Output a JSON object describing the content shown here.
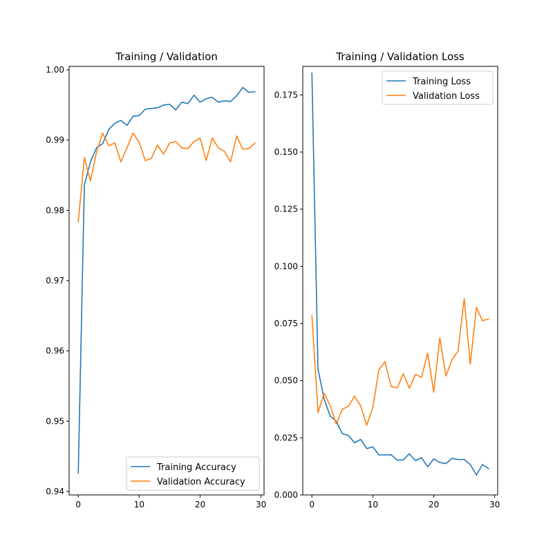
{
  "chart_data": [
    {
      "type": "line",
      "title": "Training / Validation",
      "xlabel": "",
      "ylabel": "",
      "xlim": [
        -1.5,
        30.5
      ],
      "ylim": [
        0.9395,
        1.0005
      ],
      "xticks": [
        0,
        10,
        20,
        30
      ],
      "yticks": [
        0.94,
        0.95,
        0.96,
        0.97,
        0.98,
        0.99,
        1.0
      ],
      "ytick_labels": [
        "0.94",
        "0.95",
        "0.96",
        "0.97",
        "0.98",
        "0.99",
        "1.00"
      ],
      "grid": false,
      "legend_position": "lower-right",
      "x": [
        0,
        1,
        2,
        3,
        4,
        5,
        6,
        7,
        8,
        9,
        10,
        11,
        12,
        13,
        14,
        15,
        16,
        17,
        18,
        19,
        20,
        21,
        22,
        23,
        24,
        25,
        26,
        27,
        28,
        29
      ],
      "series": [
        {
          "name": "Training Accuracy",
          "color": "#1f77b4",
          "values": [
            0.9426,
            0.9836,
            0.9869,
            0.9889,
            0.9895,
            0.9915,
            0.9924,
            0.9928,
            0.9921,
            0.9934,
            0.9935,
            0.9944,
            0.9945,
            0.9946,
            0.995,
            0.9951,
            0.9943,
            0.9954,
            0.9952,
            0.9964,
            0.9954,
            0.9959,
            0.9961,
            0.9954,
            0.9956,
            0.9955,
            0.9963,
            0.9975,
            0.9968,
            0.9969
          ]
        },
        {
          "name": "Validation Accuracy",
          "color": "#ff7f0e",
          "values": [
            0.9784,
            0.9875,
            0.9842,
            0.9883,
            0.991,
            0.9892,
            0.9896,
            0.9869,
            0.9889,
            0.991,
            0.9897,
            0.9871,
            0.9874,
            0.9893,
            0.988,
            0.9896,
            0.9898,
            0.9889,
            0.9888,
            0.9898,
            0.9903,
            0.9871,
            0.9903,
            0.9889,
            0.9884,
            0.9869,
            0.9906,
            0.9887,
            0.9888,
            0.9896
          ]
        }
      ]
    },
    {
      "type": "line",
      "title": "Training / Validation Loss",
      "xlabel": "",
      "ylabel": "",
      "xlim": [
        -1.5,
        30.5
      ],
      "ylim": [
        0.0,
        0.1875
      ],
      "xticks": [
        0,
        10,
        20,
        30
      ],
      "yticks": [
        0.0,
        0.025,
        0.05,
        0.075,
        0.1,
        0.125,
        0.15,
        0.175
      ],
      "ytick_labels": [
        "0.000",
        "0.025",
        "0.050",
        "0.075",
        "0.100",
        "0.125",
        "0.150",
        "0.175"
      ],
      "grid": false,
      "legend_position": "upper-right",
      "x": [
        0,
        1,
        2,
        3,
        4,
        5,
        6,
        7,
        8,
        9,
        10,
        11,
        12,
        13,
        14,
        15,
        16,
        17,
        18,
        19,
        20,
        21,
        22,
        23,
        24,
        25,
        26,
        27,
        28,
        29
      ],
      "series": [
        {
          "name": "Training Loss",
          "color": "#1f77b4",
          "values": [
            0.1845,
            0.055,
            0.042,
            0.0345,
            0.0322,
            0.0268,
            0.026,
            0.0228,
            0.0243,
            0.0203,
            0.021,
            0.0175,
            0.0175,
            0.0176,
            0.0152,
            0.0153,
            0.018,
            0.015,
            0.0163,
            0.0123,
            0.0158,
            0.0142,
            0.0137,
            0.016,
            0.0155,
            0.0155,
            0.0133,
            0.0087,
            0.0133,
            0.0115
          ]
        },
        {
          "name": "Validation Loss",
          "color": "#ff7f0e",
          "values": [
            0.0785,
            0.036,
            0.0445,
            0.039,
            0.031,
            0.0375,
            0.0388,
            0.0432,
            0.039,
            0.0305,
            0.0382,
            0.0548,
            0.0583,
            0.0475,
            0.0468,
            0.053,
            0.0467,
            0.0527,
            0.0515,
            0.062,
            0.045,
            0.0687,
            0.052,
            0.0592,
            0.063,
            0.086,
            0.0572,
            0.082,
            0.0762,
            0.077
          ]
        }
      ]
    }
  ]
}
